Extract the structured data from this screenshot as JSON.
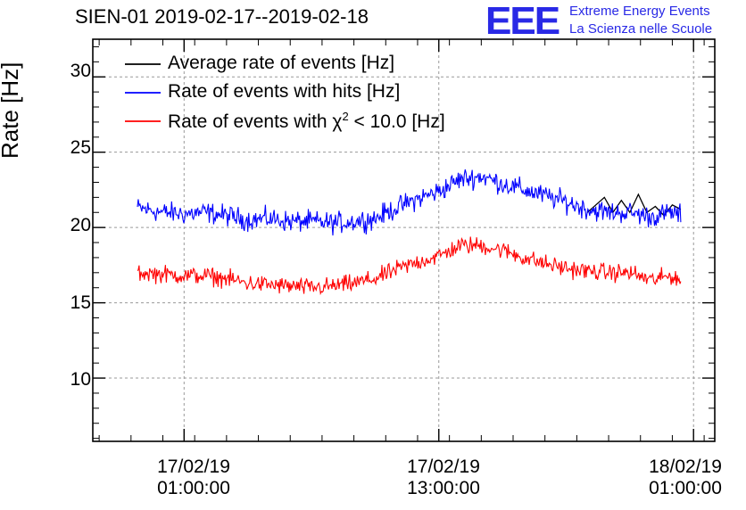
{
  "header": {
    "title": "SIEN-01 2019-02-17--2019-02-18",
    "logo_text": "EEE",
    "logo_line1": "Extreme Energy Events",
    "logo_line2": "La Scienza nelle Scuole"
  },
  "chart_data": {
    "type": "line",
    "title": "SIEN-01 2019-02-17--2019-02-18",
    "xlabel": "",
    "ylabel": "Rate [Hz]",
    "xlim_hours": [
      -4.3,
      25.0
    ],
    "ylim": [
      5.8,
      32.5
    ],
    "grid": true,
    "legend_position": "top-left",
    "yticks": [
      10,
      15,
      20,
      25,
      30
    ],
    "xticks": [
      {
        "hour": 0,
        "date": "17/02/19",
        "time": "01:00:00"
      },
      {
        "hour": 12,
        "date": "17/02/19",
        "time": "13:00:00"
      },
      {
        "hour": 24,
        "date": "18/02/19",
        "time": "01:00:00"
      }
    ],
    "series": [
      {
        "name": "Average rate of events [Hz]",
        "label_main": "Average rate of events [Hz]",
        "color": "#000000",
        "points": [
          [
            19.0,
            21.0
          ],
          [
            19.4,
            21.5
          ],
          [
            19.8,
            22.0
          ],
          [
            20.2,
            21.0
          ],
          [
            20.6,
            21.8
          ],
          [
            21.0,
            21.0
          ],
          [
            21.4,
            22.2
          ],
          [
            21.8,
            21.0
          ],
          [
            22.2,
            21.4
          ],
          [
            22.6,
            20.8
          ],
          [
            23.0,
            21.5
          ],
          [
            23.4,
            21.2
          ]
        ]
      },
      {
        "name": "Rate of events with hits [Hz]",
        "label_main": "Rate of events with hits [Hz]",
        "color": "#0000ff",
        "baseline_points": [
          [
            -2.2,
            21.3
          ],
          [
            -1.0,
            21.0
          ],
          [
            0.0,
            20.9
          ],
          [
            1.0,
            21.0
          ],
          [
            2.0,
            20.8
          ],
          [
            3.0,
            20.5
          ],
          [
            4.0,
            20.6
          ],
          [
            5.0,
            20.4
          ],
          [
            6.0,
            20.4
          ],
          [
            7.0,
            20.3
          ],
          [
            8.0,
            20.4
          ],
          [
            9.0,
            20.6
          ],
          [
            10.0,
            21.3
          ],
          [
            11.0,
            21.9
          ],
          [
            12.0,
            22.4
          ],
          [
            13.0,
            23.2
          ],
          [
            14.0,
            23.4
          ],
          [
            15.0,
            22.9
          ],
          [
            16.0,
            22.5
          ],
          [
            17.0,
            22.1
          ],
          [
            18.0,
            21.7
          ],
          [
            19.0,
            21.2
          ],
          [
            20.0,
            21.0
          ],
          [
            21.0,
            21.0
          ],
          [
            22.0,
            20.7
          ],
          [
            23.0,
            21.0
          ],
          [
            23.4,
            20.8
          ]
        ],
        "noise_hz": 0.6
      },
      {
        "name": "Rate of events with χ2 < 10.0 [Hz]",
        "label_main": "Rate of events with χ",
        "label_sup": "2",
        "label_tail": " < 10.0 [Hz]",
        "color": "#ff0000",
        "baseline_points": [
          [
            -2.2,
            17.0
          ],
          [
            -1.0,
            16.9
          ],
          [
            0.0,
            16.8
          ],
          [
            1.0,
            16.8
          ],
          [
            2.0,
            16.6
          ],
          [
            3.0,
            16.3
          ],
          [
            4.0,
            16.2
          ],
          [
            5.0,
            16.1
          ],
          [
            6.0,
            16.0
          ],
          [
            7.0,
            16.1
          ],
          [
            8.0,
            16.3
          ],
          [
            9.0,
            16.6
          ],
          [
            10.0,
            17.2
          ],
          [
            11.0,
            17.7
          ],
          [
            12.0,
            18.1
          ],
          [
            13.0,
            18.8
          ],
          [
            14.0,
            18.8
          ],
          [
            15.0,
            18.5
          ],
          [
            16.0,
            18.0
          ],
          [
            17.0,
            17.6
          ],
          [
            18.0,
            17.3
          ],
          [
            19.0,
            17.1
          ],
          [
            20.0,
            17.0
          ],
          [
            21.0,
            17.0
          ],
          [
            22.0,
            16.5
          ],
          [
            23.0,
            16.8
          ],
          [
            23.4,
            16.5
          ]
        ],
        "noise_hz": 0.5
      }
    ]
  }
}
